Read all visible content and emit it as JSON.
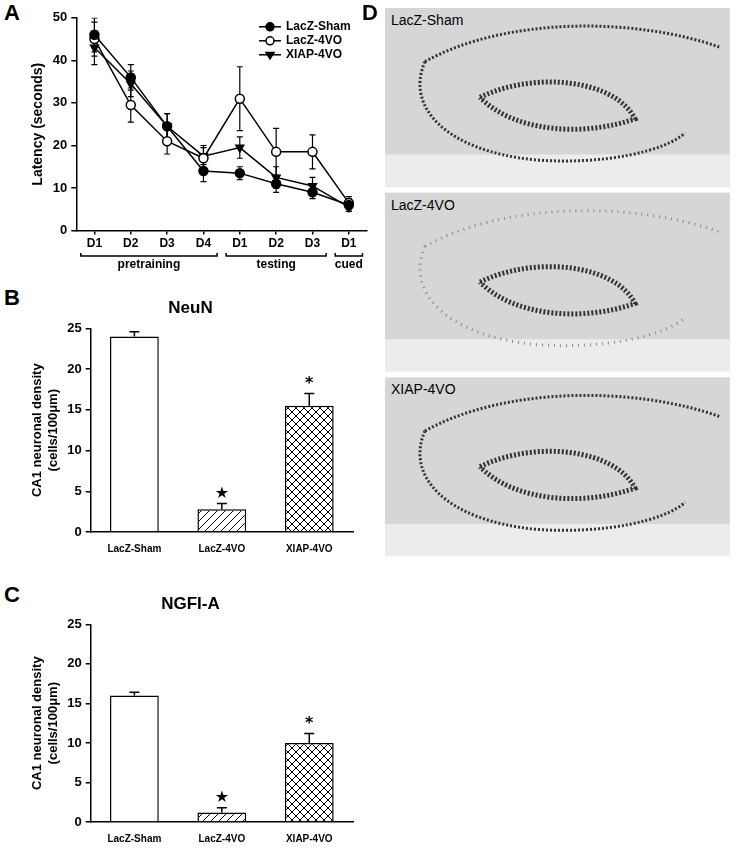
{
  "chart_data": [
    {
      "panel": "A",
      "type": "line",
      "categories": [
        "D1",
        "D2",
        "D3",
        "D4",
        "D1",
        "D2",
        "D3",
        "D1"
      ],
      "category_groups": [
        "pretraining",
        "pretraining",
        "pretraining",
        "pretraining",
        "testing",
        "testing",
        "testing",
        "cued"
      ],
      "y_label": "Latency (seconds)",
      "ylim": [
        0,
        50
      ],
      "yticks": [
        0,
        10,
        20,
        30,
        40,
        50
      ],
      "grid": false,
      "legend": "upper right",
      "series": [
        {
          "name": "LacZ-Sham",
          "color": "#000000",
          "marker": "circle_filled",
          "values": [
            46,
            36,
            24.5,
            14,
            13.5,
            11,
            9,
            6
          ],
          "errors": [
            4,
            3,
            3,
            2.5,
            1.5,
            2,
            1.5,
            1.5
          ]
        },
        {
          "name": "LacZ-4VO",
          "color": "#000000",
          "marker": "circle_open",
          "values": [
            45,
            29.5,
            21,
            17,
            31,
            18.5,
            18.5,
            6.5
          ],
          "errors": [
            4,
            4,
            3,
            3,
            7.5,
            5.5,
            4,
            1.5
          ]
        },
        {
          "name": "XIAP-4VO",
          "color": "#000000",
          "marker": "triangle_down",
          "values": [
            43,
            34.5,
            24.5,
            17.5,
            19.5,
            12.5,
            10.5,
            5.5
          ],
          "errors": [
            4,
            3,
            3,
            2,
            2.5,
            2.5,
            2,
            1
          ]
        }
      ]
    },
    {
      "panel": "B",
      "type": "bar",
      "title": "NeuN",
      "y_label": [
        "CA1 neuronal density",
        "(cells/100μm)"
      ],
      "categories": [
        "LacZ-Sham",
        "LacZ-4VO",
        "XIAP-4VO"
      ],
      "values": [
        24,
        2.8,
        15.5
      ],
      "errors": [
        0.6,
        0.7,
        1.5
      ],
      "annotations": [
        null,
        "★",
        "*"
      ],
      "ylim": [
        0,
        25
      ],
      "yticks": [
        0,
        5,
        10,
        15,
        20,
        25
      ],
      "grid": false,
      "color": "#000000"
    },
    {
      "panel": "C",
      "type": "bar",
      "title": "NGFI-A",
      "y_label": [
        "CA1 neuronal density",
        "(cells/100μm)"
      ],
      "categories": [
        "LacZ-Sham",
        "LacZ-4VO",
        "XIAP-4VO"
      ],
      "values": [
        16,
        1.2,
        10
      ],
      "errors": [
        0.4,
        0.6,
        1.2
      ],
      "annotations": [
        null,
        "★",
        "*"
      ],
      "ylim": [
        0,
        25
      ],
      "yticks": [
        0,
        5,
        10,
        15,
        20,
        25
      ],
      "grid": false,
      "color": "#000000"
    }
  ],
  "photos": {
    "panel": "D",
    "images": [
      {
        "label": "LacZ-Sham"
      },
      {
        "label": "LacZ-4VO"
      },
      {
        "label": "XIAP-4VO"
      }
    ]
  }
}
